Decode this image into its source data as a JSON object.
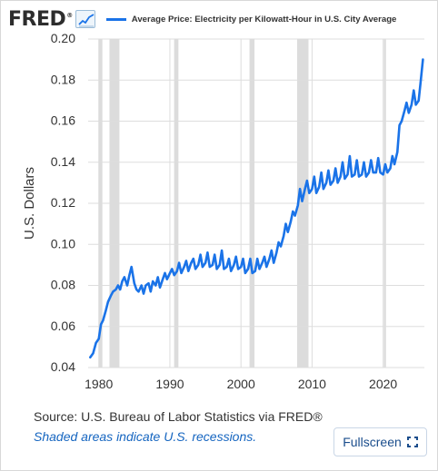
{
  "header": {
    "logo_text": "FRED",
    "logo_mark": "®",
    "logo_icon": "line-chart-icon",
    "legend_label": "Average Price: Electricity per Kilowatt-Hour in U.S. City Average"
  },
  "footer": {
    "source": "Source: U.S. Bureau of Labor Statistics via FRED®",
    "recession_note": "Shaded areas indicate U.S. recessions.",
    "fullscreen_label": "Fullscreen",
    "fullscreen_icon": "expand-icon"
  },
  "colors": {
    "series": "#1a73e8",
    "recession": "#dcdcdc",
    "grid": "#dddddd",
    "axis_text": "#333333"
  },
  "chart_data": {
    "type": "line",
    "title": "",
    "xlabel": "",
    "ylabel": "U.S. Dollars",
    "xlim": [
      1978.5,
      2025.8
    ],
    "ylim": [
      0.04,
      0.2
    ],
    "x_ticks": [
      1980,
      1990,
      2000,
      2010,
      2020
    ],
    "x_tick_labels": [
      "1980",
      "1990",
      "2000",
      "2010",
      "2020"
    ],
    "y_ticks": [
      0.04,
      0.06,
      0.08,
      0.1,
      0.12,
      0.14,
      0.16,
      0.18,
      0.2
    ],
    "y_tick_labels": [
      "0.04",
      "0.06",
      "0.08",
      "0.10",
      "0.12",
      "0.14",
      "0.16",
      "0.18",
      "0.20"
    ],
    "grid": true,
    "legend": "top",
    "recessions": [
      [
        1980.0,
        1980.5
      ],
      [
        1981.5,
        1982.9
      ],
      [
        1990.6,
        1991.2
      ],
      [
        2001.2,
        2001.9
      ],
      [
        2007.9,
        2009.5
      ],
      [
        2020.1,
        2020.4
      ]
    ],
    "series": [
      {
        "name": "Average Price: Electricity per Kilowatt-Hour in U.S. City Average",
        "x": [
          1978.8,
          1979.2,
          1979.6,
          1980.0,
          1980.3,
          1980.6,
          1981.0,
          1981.3,
          1981.7,
          1982.0,
          1982.4,
          1982.7,
          1983.0,
          1983.3,
          1983.6,
          1984.0,
          1984.3,
          1984.6,
          1985.0,
          1985.3,
          1985.6,
          1986.0,
          1986.3,
          1986.6,
          1987.0,
          1987.3,
          1987.6,
          1988.0,
          1988.3,
          1988.6,
          1989.0,
          1989.3,
          1989.6,
          1990.0,
          1990.3,
          1990.6,
          1991.0,
          1991.3,
          1991.6,
          1992.0,
          1992.3,
          1992.6,
          1993.0,
          1993.3,
          1993.6,
          1994.0,
          1994.3,
          1994.6,
          1995.0,
          1995.3,
          1995.6,
          1996.0,
          1996.3,
          1996.6,
          1997.0,
          1997.3,
          1997.6,
          1998.0,
          1998.3,
          1998.6,
          1999.0,
          1999.3,
          1999.6,
          2000.0,
          2000.3,
          2000.6,
          2001.0,
          2001.3,
          2001.6,
          2002.0,
          2002.3,
          2002.6,
          2003.0,
          2003.3,
          2003.6,
          2004.0,
          2004.3,
          2004.6,
          2005.0,
          2005.3,
          2005.6,
          2006.0,
          2006.3,
          2006.6,
          2007.0,
          2007.3,
          2007.6,
          2008.0,
          2008.3,
          2008.6,
          2009.0,
          2009.3,
          2009.6,
          2010.0,
          2010.3,
          2010.6,
          2011.0,
          2011.3,
          2011.6,
          2012.0,
          2012.3,
          2012.6,
          2013.0,
          2013.3,
          2013.6,
          2014.0,
          2014.3,
          2014.6,
          2015.0,
          2015.3,
          2015.6,
          2016.0,
          2016.3,
          2016.6,
          2017.0,
          2017.3,
          2017.6,
          2018.0,
          2018.3,
          2018.6,
          2019.0,
          2019.3,
          2019.6,
          2020.0,
          2020.3,
          2020.6,
          2021.0,
          2021.3,
          2021.6,
          2022.0,
          2022.3,
          2022.6,
          2023.0,
          2023.3,
          2023.6,
          2024.0,
          2024.3,
          2024.6,
          2025.0,
          2025.3,
          2025.6
        ],
        "y": [
          0.045,
          0.047,
          0.052,
          0.054,
          0.061,
          0.063,
          0.068,
          0.072,
          0.075,
          0.077,
          0.078,
          0.08,
          0.078,
          0.082,
          0.084,
          0.08,
          0.085,
          0.089,
          0.081,
          0.078,
          0.077,
          0.08,
          0.076,
          0.08,
          0.081,
          0.077,
          0.082,
          0.08,
          0.084,
          0.079,
          0.083,
          0.086,
          0.083,
          0.086,
          0.088,
          0.085,
          0.087,
          0.091,
          0.086,
          0.089,
          0.092,
          0.087,
          0.091,
          0.093,
          0.088,
          0.09,
          0.095,
          0.089,
          0.091,
          0.096,
          0.089,
          0.09,
          0.095,
          0.088,
          0.09,
          0.097,
          0.088,
          0.089,
          0.093,
          0.087,
          0.09,
          0.094,
          0.088,
          0.089,
          0.093,
          0.086,
          0.088,
          0.093,
          0.086,
          0.087,
          0.093,
          0.088,
          0.091,
          0.094,
          0.089,
          0.093,
          0.097,
          0.091,
          0.096,
          0.101,
          0.099,
          0.104,
          0.11,
          0.106,
          0.111,
          0.116,
          0.114,
          0.119,
          0.127,
          0.121,
          0.127,
          0.131,
          0.125,
          0.127,
          0.133,
          0.125,
          0.128,
          0.135,
          0.127,
          0.13,
          0.136,
          0.129,
          0.131,
          0.137,
          0.13,
          0.133,
          0.14,
          0.132,
          0.134,
          0.143,
          0.133,
          0.134,
          0.141,
          0.133,
          0.134,
          0.14,
          0.133,
          0.135,
          0.141,
          0.135,
          0.135,
          0.142,
          0.135,
          0.134,
          0.139,
          0.135,
          0.137,
          0.143,
          0.139,
          0.145,
          0.158,
          0.16,
          0.165,
          0.169,
          0.164,
          0.168,
          0.175,
          0.168,
          0.17,
          0.18,
          0.19
        ]
      }
    ]
  }
}
